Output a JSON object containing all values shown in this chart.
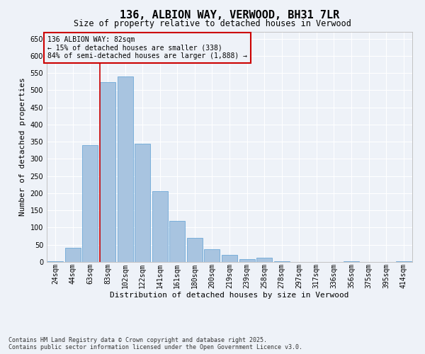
{
  "title": "136, ALBION WAY, VERWOOD, BH31 7LR",
  "subtitle": "Size of property relative to detached houses in Verwood",
  "xlabel": "Distribution of detached houses by size in Verwood",
  "ylabel": "Number of detached properties",
  "categories": [
    "24sqm",
    "44sqm",
    "63sqm",
    "83sqm",
    "102sqm",
    "122sqm",
    "141sqm",
    "161sqm",
    "180sqm",
    "200sqm",
    "219sqm",
    "239sqm",
    "258sqm",
    "278sqm",
    "297sqm",
    "317sqm",
    "336sqm",
    "356sqm",
    "375sqm",
    "395sqm",
    "414sqm"
  ],
  "values": [
    2,
    42,
    340,
    523,
    540,
    345,
    207,
    119,
    70,
    38,
    20,
    9,
    12,
    2,
    1,
    1,
    0,
    2,
    0,
    0,
    2
  ],
  "bar_color": "#a8c4e0",
  "bar_edge_color": "#5a9fd4",
  "ylim": [
    0,
    670
  ],
  "yticks": [
    0,
    50,
    100,
    150,
    200,
    250,
    300,
    350,
    400,
    450,
    500,
    550,
    600,
    650
  ],
  "vline_x_index": 3,
  "vline_color": "#cc0000",
  "annotation_text": "136 ALBION WAY: 82sqm\n← 15% of detached houses are smaller (338)\n84% of semi-detached houses are larger (1,888) →",
  "annotation_box_color": "#cc0000",
  "footer": "Contains HM Land Registry data © Crown copyright and database right 2025.\nContains public sector information licensed under the Open Government Licence v3.0.",
  "bg_color": "#eef2f8",
  "grid_color": "#ffffff",
  "title_fontsize": 11,
  "subtitle_fontsize": 8.5,
  "xlabel_fontsize": 8,
  "ylabel_fontsize": 8,
  "tick_fontsize": 7,
  "footer_fontsize": 6,
  "annotation_fontsize": 7
}
